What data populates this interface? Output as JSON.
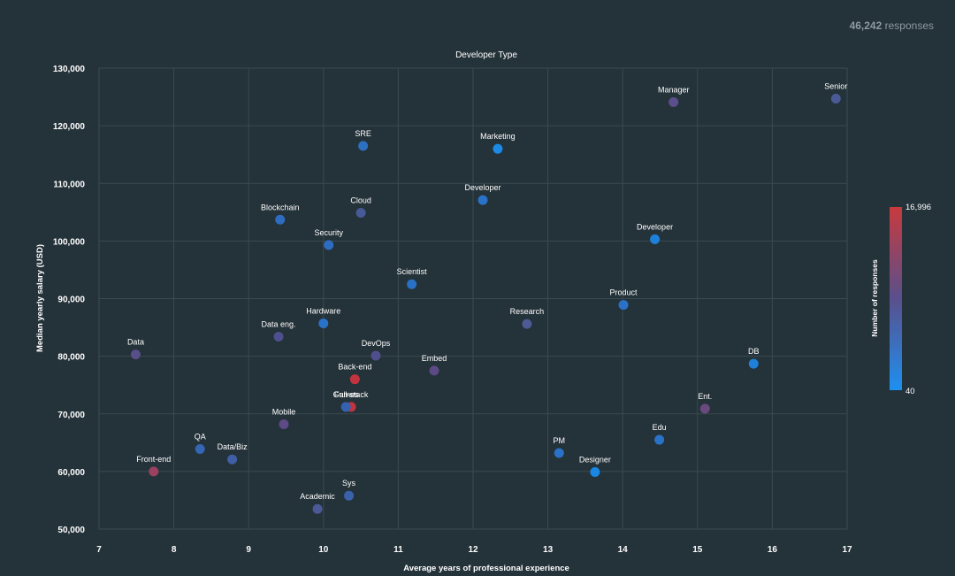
{
  "header": {
    "responses_count": "46,242",
    "responses_label": "responses"
  },
  "colors": {
    "background": "#243239",
    "grid": "#3b4a51",
    "scale_low": "#1e90f0",
    "scale_mid": "#5a4f8c",
    "scale_high": "#c83a3e"
  },
  "chart_data": {
    "type": "scatter",
    "title": "Developer Type",
    "xlabel": "Average years of professional experience",
    "ylabel": "Median yearly salary (USD)",
    "xlim": [
      7,
      17
    ],
    "ylim": [
      50000,
      130000
    ],
    "xticks": [
      7,
      8,
      9,
      10,
      11,
      12,
      13,
      14,
      15,
      16,
      17
    ],
    "yticks": [
      50000,
      60000,
      70000,
      80000,
      90000,
      100000,
      110000,
      120000,
      130000
    ],
    "ytick_labels": [
      "50,000",
      "60,000",
      "70,000",
      "80,000",
      "90,000",
      "100,000",
      "110,000",
      "120,000",
      "130,000"
    ],
    "grid": true,
    "colorbar": {
      "label": "Number of responses",
      "min": 40,
      "max": 16996,
      "min_label": "40",
      "max_label": "16,996"
    },
    "points": [
      {
        "label": "Senior",
        "x": 16.85,
        "y": 124700,
        "color": "#4a5a96"
      },
      {
        "label": "Manager",
        "x": 14.68,
        "y": 124100,
        "color": "#5a4f8c"
      },
      {
        "label": "SRE",
        "x": 10.53,
        "y": 116500,
        "color": "#2d6fc0"
      },
      {
        "label": "Marketing",
        "x": 12.33,
        "y": 116000,
        "color": "#1a8ae6"
      },
      {
        "label": "Developer",
        "x": 12.13,
        "y": 107100,
        "color": "#2a72c8"
      },
      {
        "label": "Cloud",
        "x": 10.5,
        "y": 104900,
        "color": "#475a98"
      },
      {
        "label": "Blockchain",
        "x": 9.42,
        "y": 103700,
        "color": "#2d6cc0"
      },
      {
        "label": "Developer",
        "x": 14.43,
        "y": 100300,
        "color": "#1f80dc"
      },
      {
        "label": "Security",
        "x": 10.07,
        "y": 99300,
        "color": "#2d6cc0"
      },
      {
        "label": "Scientist",
        "x": 11.18,
        "y": 92500,
        "color": "#2a70c4"
      },
      {
        "label": "Product",
        "x": 14.01,
        "y": 88900,
        "color": "#2a72c8"
      },
      {
        "label": "Hardware",
        "x": 10.0,
        "y": 85700,
        "color": "#2a72c8"
      },
      {
        "label": "Research",
        "x": 12.72,
        "y": 85600,
        "color": "#4d5a94"
      },
      {
        "label": "Data eng.",
        "x": 9.4,
        "y": 83400,
        "color": "#4e4f8e"
      },
      {
        "label": "Data",
        "x": 7.49,
        "y": 80300,
        "color": "#584e8a"
      },
      {
        "label": "DevOps",
        "x": 10.7,
        "y": 80100,
        "color": "#504f8e"
      },
      {
        "label": "DB",
        "x": 15.75,
        "y": 78700,
        "color": "#1f80dc"
      },
      {
        "label": "Embed",
        "x": 11.48,
        "y": 77500,
        "color": "#5c4a86"
      },
      {
        "label": "Back-end",
        "x": 10.42,
        "y": 76000,
        "color": "#c0343e"
      },
      {
        "label": "Full-stack",
        "x": 10.37,
        "y": 71200,
        "color": "#c0343e"
      },
      {
        "label": "Games",
        "x": 10.3,
        "y": 71200,
        "color": "#3562b0"
      },
      {
        "label": "Ent.",
        "x": 15.1,
        "y": 70900,
        "color": "#6a4a7e"
      },
      {
        "label": "Mobile",
        "x": 9.47,
        "y": 68200,
        "color": "#5e4a86"
      },
      {
        "label": "Edu",
        "x": 14.49,
        "y": 65500,
        "color": "#2a72c8"
      },
      {
        "label": "QA",
        "x": 8.35,
        "y": 63900,
        "color": "#3566b4"
      },
      {
        "label": "PM",
        "x": 13.15,
        "y": 63200,
        "color": "#2a72c8"
      },
      {
        "label": "Data/Biz",
        "x": 8.78,
        "y": 62100,
        "color": "#3f5ea4"
      },
      {
        "label": "Front-end",
        "x": 7.73,
        "y": 60000,
        "color": "#9a4060"
      },
      {
        "label": "Designer",
        "x": 13.63,
        "y": 59900,
        "color": "#1a86e4"
      },
      {
        "label": "Sys",
        "x": 10.34,
        "y": 55800,
        "color": "#3a62ac"
      },
      {
        "label": "Academic",
        "x": 9.92,
        "y": 53500,
        "color": "#4b5a96"
      }
    ]
  }
}
